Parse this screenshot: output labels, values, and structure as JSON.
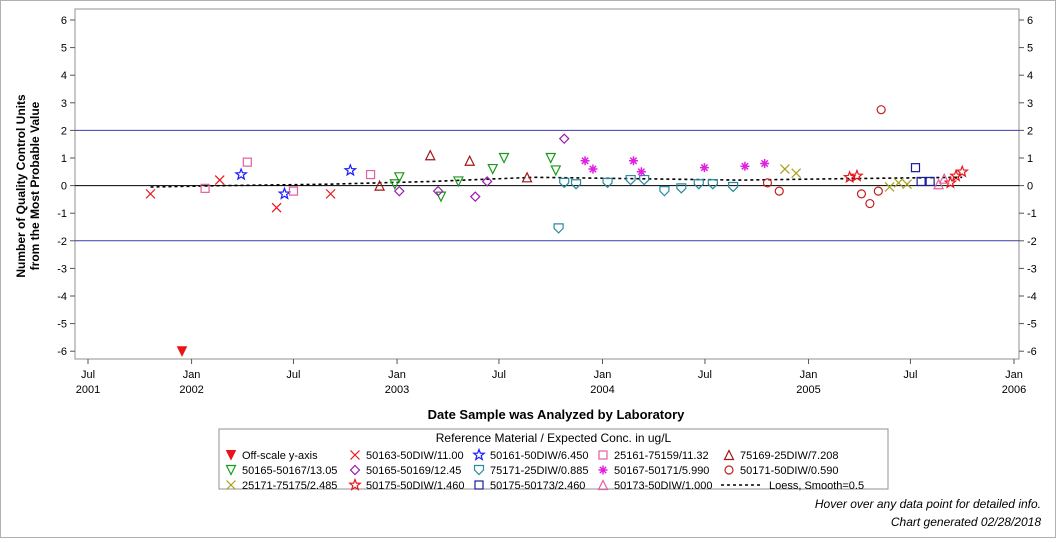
{
  "chart_data": {
    "type": "scatter",
    "xlabel": "Date Sample was Analyzed by Laboratory",
    "ylabel_line1": "Number of Quality Control Units",
    "ylabel_line2": "from the Most Probable Value",
    "ylim": [
      -6.5,
      6.3
    ],
    "xlim": [
      "2001-07-01",
      "2006-01-01"
    ],
    "y_ticks": [
      -6,
      -5,
      -4,
      -3,
      -2,
      -1,
      0,
      1,
      2,
      3,
      4,
      5,
      6
    ],
    "x_ticks": [
      {
        "date": "2001-07-01",
        "l1": "Jul",
        "l2": "2001"
      },
      {
        "date": "2002-01-01",
        "l1": "Jan",
        "l2": "2002"
      },
      {
        "date": "2002-07-01",
        "l1": "Jul",
        "l2": ""
      },
      {
        "date": "2003-01-01",
        "l1": "Jan",
        "l2": "2003"
      },
      {
        "date": "2003-07-01",
        "l1": "Jul",
        "l2": ""
      },
      {
        "date": "2004-01-01",
        "l1": "Jan",
        "l2": "2004"
      },
      {
        "date": "2004-07-01",
        "l1": "Jul",
        "l2": ""
      },
      {
        "date": "2005-01-01",
        "l1": "Jan",
        "l2": "2005"
      },
      {
        "date": "2005-07-01",
        "l1": "Jul",
        "l2": ""
      },
      {
        "date": "2006-01-01",
        "l1": "Jan",
        "l2": "2006"
      }
    ],
    "reference_lines": [
      2,
      -2
    ],
    "zero_line": 0,
    "legend_title": "Reference Material / Expected Conc. in ug/L",
    "legend_placement": "bottom",
    "series": [
      {
        "name": "Off-scale y-axis",
        "marker": "tri-down-filled",
        "color": "#e8141a",
        "points": [
          [
            "2001-12-15",
            -6
          ]
        ]
      },
      {
        "name": "50163-50DIW/11.00",
        "marker": "x",
        "color": "#e8141a",
        "points": [
          [
            "2001-10-20",
            -0.3
          ],
          [
            "2002-02-20",
            0.2
          ],
          [
            "2002-06-01",
            -0.8
          ],
          [
            "2002-09-05",
            -0.3
          ]
        ]
      },
      {
        "name": "50161-50DIW/6.450",
        "marker": "star",
        "color": "#1a1aff",
        "points": [
          [
            "2002-03-30",
            0.4
          ],
          [
            "2002-06-15",
            -0.3
          ],
          [
            "2002-10-10",
            0.55
          ]
        ]
      },
      {
        "name": "25161-75159/11.32",
        "marker": "square",
        "color": "#e060a0",
        "points": [
          [
            "2002-01-25",
            -0.1
          ],
          [
            "2002-04-10",
            0.85
          ],
          [
            "2002-07-01",
            -0.2
          ],
          [
            "2002-11-15",
            0.4
          ]
        ]
      },
      {
        "name": "75169-25DIW/7.208",
        "marker": "tri-up",
        "color": "#a01818",
        "points": [
          [
            "2002-12-01",
            0.0
          ],
          [
            "2003-03-01",
            1.1
          ],
          [
            "2003-05-10",
            0.9
          ],
          [
            "2003-08-20",
            0.3
          ]
        ]
      },
      {
        "name": "50165-50167/13.05",
        "marker": "tri-down",
        "color": "#1a9a1a",
        "points": [
          [
            "2002-12-28",
            0.05
          ],
          [
            "2003-01-05",
            0.3
          ],
          [
            "2003-03-20",
            -0.4
          ],
          [
            "2003-04-20",
            0.15
          ],
          [
            "2003-06-20",
            0.6
          ],
          [
            "2003-07-10",
            1.0
          ],
          [
            "2003-10-01",
            1.0
          ],
          [
            "2003-10-10",
            0.55
          ]
        ]
      },
      {
        "name": "50165-50169/12.45",
        "marker": "diamond",
        "color": "#9a1ab0",
        "points": [
          [
            "2003-01-05",
            -0.2
          ],
          [
            "2003-03-15",
            -0.2
          ],
          [
            "2003-05-20",
            -0.4
          ],
          [
            "2003-06-10",
            0.15
          ],
          [
            "2003-10-25",
            1.7
          ]
        ]
      },
      {
        "name": "75171-25DIW/0.885",
        "marker": "shield",
        "color": "#2a8aa0",
        "points": [
          [
            "2003-10-15",
            -1.55
          ],
          [
            "2003-10-25",
            0.1
          ],
          [
            "2003-11-15",
            0.05
          ],
          [
            "2004-01-10",
            0.1
          ],
          [
            "2004-02-20",
            0.2
          ],
          [
            "2004-03-15",
            0.2
          ],
          [
            "2004-04-20",
            -0.2
          ],
          [
            "2004-05-20",
            -0.1
          ],
          [
            "2004-06-20",
            0.05
          ],
          [
            "2004-07-15",
            0.05
          ],
          [
            "2004-08-20",
            -0.05
          ]
        ]
      },
      {
        "name": "50167-50171/5.990",
        "marker": "asterisk",
        "color": "#e020e0",
        "points": [
          [
            "2003-12-01",
            0.9
          ],
          [
            "2003-12-15",
            0.6
          ],
          [
            "2004-02-25",
            0.9
          ],
          [
            "2004-03-10",
            0.5
          ],
          [
            "2004-06-30",
            0.65
          ],
          [
            "2004-09-10",
            0.7
          ],
          [
            "2004-10-15",
            0.8
          ]
        ]
      },
      {
        "name": "50171-50DIW/0.590",
        "marker": "circle",
        "color": "#c02020",
        "points": [
          [
            "2004-10-20",
            0.1
          ],
          [
            "2004-11-10",
            -0.2
          ],
          [
            "2005-04-05",
            -0.3
          ],
          [
            "2005-04-20",
            -0.65
          ],
          [
            "2005-05-10",
            2.75
          ],
          [
            "2005-05-05",
            -0.2
          ]
        ]
      },
      {
        "name": "25171-75175/2.485",
        "marker": "x",
        "color": "#a8a020",
        "points": [
          [
            "2004-11-20",
            0.6
          ],
          [
            "2004-12-10",
            0.45
          ],
          [
            "2005-05-25",
            -0.05
          ],
          [
            "2005-06-10",
            0.1
          ],
          [
            "2005-06-25",
            0.05
          ]
        ]
      },
      {
        "name": "50175-50DIW/1.460",
        "marker": "star",
        "color": "#e8141a",
        "points": [
          [
            "2005-03-15",
            0.3
          ],
          [
            "2005-03-28",
            0.35
          ],
          [
            "2005-09-10",
            0.1
          ],
          [
            "2005-09-20",
            0.35
          ],
          [
            "2005-10-01",
            0.5
          ]
        ]
      },
      {
        "name": "50175-50173/2.460",
        "marker": "square",
        "color": "#1a1aa0",
        "points": [
          [
            "2005-07-10",
            0.65
          ],
          [
            "2005-07-20",
            0.15
          ],
          [
            "2005-08-05",
            0.15
          ]
        ]
      },
      {
        "name": "50173-50DIW/1.000",
        "marker": "tri-up",
        "color": "#e060a0",
        "points": [
          [
            "2005-08-20",
            0.05
          ],
          [
            "2005-08-30",
            0.25
          ]
        ]
      }
    ],
    "loess": {
      "name": "Loess, Smooth=0.5",
      "points": [
        [
          "2001-10-20",
          -0.05
        ],
        [
          "2002-03-01",
          0.0
        ],
        [
          "2002-09-01",
          0.05
        ],
        [
          "2003-03-01",
          0.15
        ],
        [
          "2003-09-01",
          0.3
        ],
        [
          "2004-03-01",
          0.25
        ],
        [
          "2004-09-01",
          0.2
        ],
        [
          "2005-03-01",
          0.25
        ],
        [
          "2005-10-01",
          0.3
        ]
      ]
    }
  },
  "footer": {
    "note": "Hover over any data point for detailed info.",
    "generated": "Chart generated 02/28/2018"
  }
}
